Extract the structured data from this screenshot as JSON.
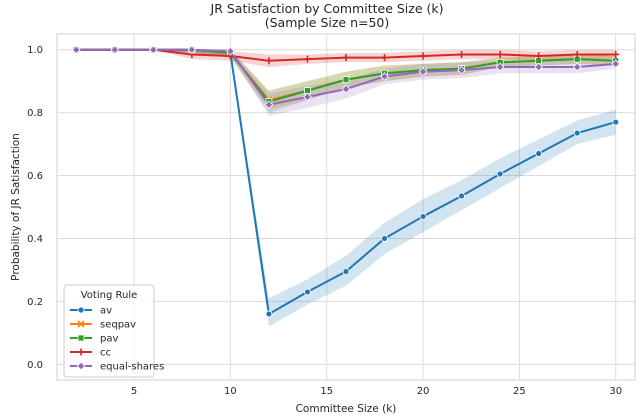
{
  "chart_data": {
    "type": "line",
    "title_line1": "JR Satisfaction by Committee Size (k)",
    "title_line2": "(Sample Size n=50)",
    "xlabel": "Committee Size (k)",
    "ylabel": "Probability of JR Satisfaction",
    "xlim": [
      1,
      31
    ],
    "ylim": [
      -0.05,
      1.05
    ],
    "xticks": [
      5,
      10,
      15,
      20,
      25,
      30
    ],
    "yticks": [
      0.0,
      0.2,
      0.4,
      0.6,
      0.8,
      1.0
    ],
    "xtick_labels": [
      "5",
      "10",
      "15",
      "20",
      "25",
      "30"
    ],
    "ytick_labels": [
      "0.0",
      "0.2",
      "0.4",
      "0.6",
      "0.8",
      "1.0"
    ],
    "grid": true,
    "legend": {
      "title": "Voting Rule",
      "position": "lower-left"
    },
    "x": [
      2,
      4,
      6,
      8,
      10,
      12,
      14,
      16,
      18,
      20,
      22,
      24,
      26,
      28,
      30
    ],
    "series": [
      {
        "name": "av",
        "color": "#1f77b4",
        "marker": "circle",
        "values": [
          1.0,
          1.0,
          1.0,
          1.0,
          0.99,
          0.16,
          0.23,
          0.295,
          0.4,
          0.47,
          0.535,
          0.605,
          0.67,
          0.735,
          0.77
        ],
        "ci_lower": [
          1.0,
          1.0,
          1.0,
          0.99,
          0.975,
          0.12,
          0.19,
          0.25,
          0.35,
          0.42,
          0.49,
          0.56,
          0.63,
          0.7,
          0.73
        ],
        "ci_upper": [
          1.0,
          1.0,
          1.0,
          1.0,
          1.0,
          0.21,
          0.27,
          0.345,
          0.45,
          0.525,
          0.585,
          0.655,
          0.715,
          0.775,
          0.81
        ]
      },
      {
        "name": "seqpav",
        "color": "#ff7f0e",
        "marker": "x",
        "values": [
          1.0,
          1.0,
          1.0,
          1.0,
          0.99,
          0.84,
          0.87,
          0.905,
          0.925,
          0.935,
          0.94,
          0.96,
          0.965,
          0.97,
          0.965
        ],
        "ci_lower": [
          1.0,
          1.0,
          1.0,
          0.99,
          0.975,
          0.81,
          0.84,
          0.88,
          0.9,
          0.915,
          0.92,
          0.945,
          0.95,
          0.955,
          0.95
        ],
        "ci_upper": [
          1.0,
          1.0,
          1.0,
          1.0,
          1.0,
          0.87,
          0.9,
          0.93,
          0.95,
          0.955,
          0.96,
          0.975,
          0.98,
          0.985,
          0.98
        ]
      },
      {
        "name": "pav",
        "color": "#2ca02c",
        "marker": "square",
        "values": [
          1.0,
          1.0,
          1.0,
          1.0,
          0.99,
          0.835,
          0.87,
          0.905,
          0.925,
          0.935,
          0.94,
          0.96,
          0.965,
          0.97,
          0.965
        ],
        "ci_lower": [
          1.0,
          1.0,
          1.0,
          0.99,
          0.975,
          0.8,
          0.84,
          0.88,
          0.9,
          0.915,
          0.92,
          0.945,
          0.95,
          0.955,
          0.95
        ],
        "ci_upper": [
          1.0,
          1.0,
          1.0,
          1.0,
          1.0,
          0.87,
          0.9,
          0.93,
          0.95,
          0.955,
          0.96,
          0.975,
          0.98,
          0.985,
          0.98
        ]
      },
      {
        "name": "cc",
        "color": "#d62728",
        "marker": "plus",
        "values": [
          1.0,
          1.0,
          1.0,
          0.985,
          0.98,
          0.965,
          0.97,
          0.975,
          0.975,
          0.98,
          0.985,
          0.985,
          0.98,
          0.985,
          0.985
        ],
        "ci_lower": [
          1.0,
          1.0,
          1.0,
          0.97,
          0.965,
          0.945,
          0.955,
          0.96,
          0.96,
          0.965,
          0.97,
          0.97,
          0.965,
          0.97,
          0.97
        ],
        "ci_upper": [
          1.0,
          1.0,
          1.0,
          1.0,
          0.995,
          0.985,
          0.985,
          0.99,
          0.99,
          0.995,
          1.0,
          1.0,
          0.995,
          1.0,
          1.0
        ]
      },
      {
        "name": "equal-shares",
        "color": "#9467bd",
        "marker": "diamond",
        "values": [
          1.0,
          1.0,
          1.0,
          1.0,
          0.995,
          0.825,
          0.85,
          0.875,
          0.915,
          0.93,
          0.935,
          0.945,
          0.945,
          0.945,
          0.955
        ],
        "ci_lower": [
          1.0,
          1.0,
          1.0,
          0.99,
          0.985,
          0.79,
          0.815,
          0.845,
          0.89,
          0.905,
          0.91,
          0.925,
          0.925,
          0.925,
          0.94
        ],
        "ci_upper": [
          1.0,
          1.0,
          1.0,
          1.0,
          1.0,
          0.86,
          0.885,
          0.905,
          0.94,
          0.955,
          0.96,
          0.965,
          0.965,
          0.965,
          0.97
        ]
      }
    ]
  }
}
